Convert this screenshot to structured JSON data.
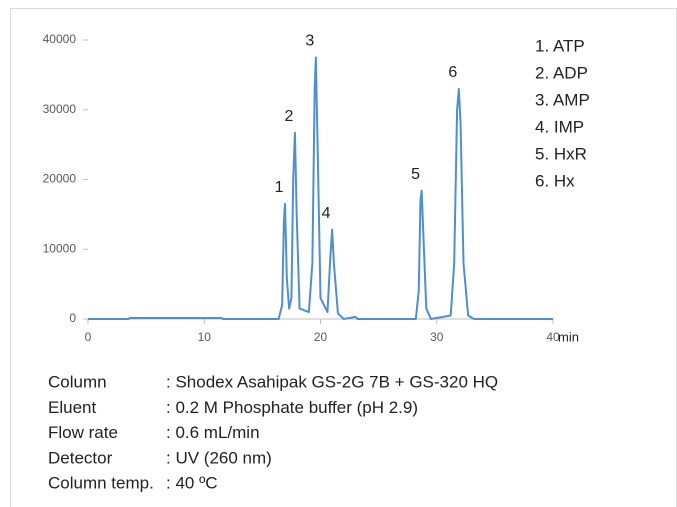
{
  "chart_data": {
    "type": "line",
    "x": [
      0,
      3.5,
      3.6,
      11.5,
      11.6,
      16.4,
      16.7,
      16.85,
      16.95,
      17.1,
      17.3,
      17.5,
      17.65,
      17.8,
      17.95,
      18.2,
      19.0,
      19.3,
      19.5,
      19.6,
      19.75,
      20.0,
      20.6,
      20.85,
      21.0,
      21.15,
      21.5,
      22.0,
      23.0,
      23.2,
      28.2,
      28.45,
      28.6,
      28.7,
      28.85,
      29.1,
      29.5,
      31.2,
      31.5,
      31.75,
      31.9,
      32.05,
      32.3,
      32.7,
      33.2,
      40
    ],
    "series": [
      {
        "color": "#4f8fcf",
        "values": [
          0,
          0,
          150,
          150,
          0,
          0,
          2000,
          14000,
          16500,
          6000,
          1500,
          3000,
          20000,
          26700,
          15000,
          1500,
          1000,
          8000,
          33000,
          37500,
          25000,
          3000,
          1000,
          9000,
          12800,
          8000,
          800,
          0,
          300,
          0,
          0,
          4000,
          17000,
          18400,
          12000,
          1500,
          0,
          500,
          8000,
          30000,
          33000,
          28000,
          8000,
          500,
          0,
          0
        ]
      }
    ],
    "xlim": [
      0,
      40
    ],
    "xticks": [
      0,
      10,
      20,
      30,
      40
    ],
    "ylim": [
      0,
      40000
    ],
    "yticks": [
      0,
      10000,
      20000,
      30000,
      40000
    ],
    "x_label": "min",
    "peaks": [
      {
        "label": "1",
        "x": 16.95,
        "y": 16500
      },
      {
        "label": "2",
        "x": 17.8,
        "y": 26700
      },
      {
        "label": "3",
        "x": 19.6,
        "y": 37500
      },
      {
        "label": "4",
        "x": 21.0,
        "y": 12800
      },
      {
        "label": "5",
        "x": 28.7,
        "y": 18400
      },
      {
        "label": "6",
        "x": 31.9,
        "y": 33000
      }
    ],
    "legend": [
      "1. ATP",
      "2. ADP",
      "3. AMP",
      "4. IMP",
      "5. HxR",
      "6. Hx"
    ],
    "conditions": [
      [
        "Column",
        ": Shodex Asahipak GS-2G 7B + GS-320 HQ"
      ],
      [
        "Eluent",
        ": 0.2 M Phosphate buffer  (pH 2.9)"
      ],
      [
        "Flow rate",
        ": 0.6 mL/min"
      ],
      [
        "Detector",
        ": UV (260 nm)"
      ],
      [
        "Column temp.",
        ": 40 ºC"
      ]
    ]
  }
}
